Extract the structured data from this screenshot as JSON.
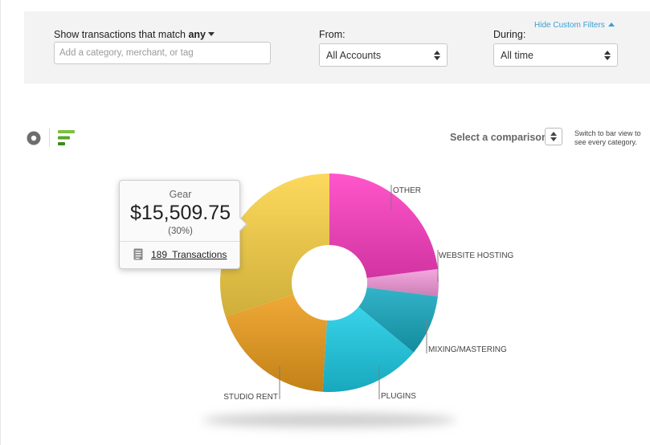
{
  "filters": {
    "match_prefix": "Show transactions that match",
    "match_mode": "any",
    "search_placeholder": "Add a category, merchant, or tag",
    "from_label": "From:",
    "from_value": "All Accounts",
    "during_label": "During:",
    "during_value": "All time",
    "hide_label": "Hide Custom Filters"
  },
  "toolbar": {
    "compare_label": "Select a comparison",
    "switch_hint": "Switch to bar view to see every category."
  },
  "tooltip": {
    "category": "Gear",
    "amount": "$15,509.75",
    "percent": "(30%)",
    "transactions": "189 Transactions"
  },
  "colors": {
    "link": "#3a9fd3",
    "gear": "#fcd447",
    "other": "#ff3fc4",
    "website_hosting": "#f59bdc",
    "mixing_mastering": "#17a9c0",
    "plugins": "#1dcde7",
    "studio_rent": "#ed9d1c"
  },
  "chart_data": {
    "type": "pie",
    "title": "",
    "slices": [
      {
        "label": "OTHER",
        "value": 23,
        "color": "#ff3fc4"
      },
      {
        "label": "WEBSITE HOSTING",
        "value": 4,
        "color": "#f59bdc"
      },
      {
        "label": "MIXING/MASTERING",
        "value": 9,
        "color": "#17a9c0"
      },
      {
        "label": "PLUGINS",
        "value": 15,
        "color": "#1dcde7"
      },
      {
        "label": "STUDIO RENT",
        "value": 19,
        "color": "#ed9d1c"
      },
      {
        "label": "Gear",
        "value": 30,
        "color": "#fcd447"
      }
    ]
  }
}
